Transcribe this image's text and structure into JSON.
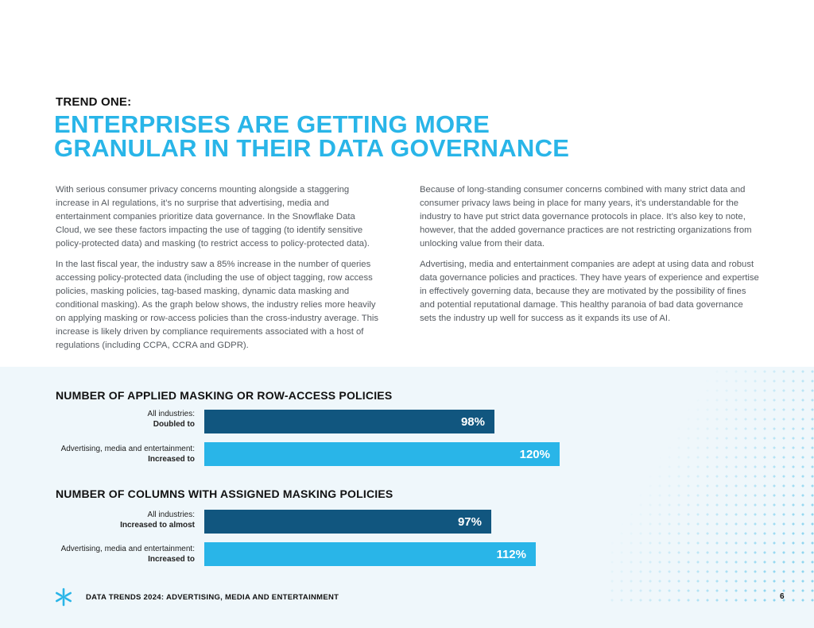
{
  "header": {
    "kicker": "TREND ONE:",
    "headline_line1": "ENTERPRISES ARE GETTING MORE",
    "headline_line2": "GRANULAR IN THEIR DATA GOVERNANCE"
  },
  "body": {
    "left_p1": "With serious consumer privacy concerns mounting alongside a staggering increase in AI regulations, it’s no surprise that advertising, media and entertainment companies prioritize data governance. In the Snowflake Data Cloud, we see these factors impacting the use of tagging (to identify sensitive policy-protected data) and masking (to restrict access to policy-protected data).",
    "left_p2": "In the last fiscal year, the industry saw a 85% increase in the number of queries accessing policy-protected data (including the use of object tagging, row access policies, masking policies, tag-based masking, dynamic data masking and conditional masking). As the graph below shows, the industry relies more heavily on applying masking or row-access policies than the cross-industry average. This increase is likely driven by compliance requirements associated with a host of regulations (including CCPA, CCRA and GDPR).",
    "right_p1": "Because of long-standing consumer concerns combined with many strict data and consumer privacy laws being in place for many years, it’s understandable for the industry to have put strict data governance protocols in place. It’s also key to note, however, that the added governance practices are not restricting organizations from unlocking value from their data.",
    "right_p2": "Advertising, media and entertainment companies are adept at using data and robust data governance policies and practices. They have years of experience and expertise in effectively governing data, because they are motivated by the possibility of fines and potential reputational damage. This healthy paranoia of bad data governance sets the industry up well for success as it expands its use of AI."
  },
  "chart_data": [
    {
      "type": "bar",
      "orientation": "horizontal",
      "title": "NUMBER OF APPLIED MASKING OR ROW-ACCESS POLICIES",
      "categories": [
        {
          "line1": "All industries:",
          "line2": "Doubled to"
        },
        {
          "line1": "Advertising, media and entertainment:",
          "line2": "Increased to"
        }
      ],
      "values": [
        98,
        120
      ],
      "labels": [
        "98%",
        "120%"
      ],
      "colors": [
        "#11567f",
        "#29b5e8"
      ],
      "xlim": [
        0,
        120
      ]
    },
    {
      "type": "bar",
      "orientation": "horizontal",
      "title": "NUMBER OF COLUMNS WITH ASSIGNED MASKING POLICIES",
      "categories": [
        {
          "line1": "All industries:",
          "line2": "Increased to almost"
        },
        {
          "line1": "Advertising, media and entertainment:",
          "line2": "Increased to"
        }
      ],
      "values": [
        97,
        112
      ],
      "labels": [
        "97%",
        "112%"
      ],
      "colors": [
        "#11567f",
        "#29b5e8"
      ],
      "xlim": [
        0,
        120
      ]
    }
  ],
  "footer": {
    "report_title": "DATA TRENDS 2024: ADVERTISING, MEDIA AND ENTERTAINMENT",
    "page_number": "6",
    "logo_icon": "snowflake-icon"
  }
}
